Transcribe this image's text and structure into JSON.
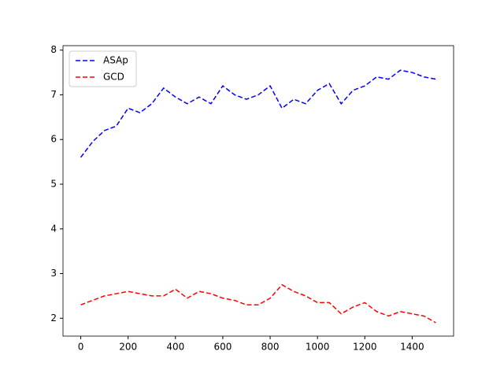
{
  "chart_data": {
    "type": "line",
    "x": [
      0,
      50,
      100,
      150,
      200,
      250,
      300,
      350,
      400,
      450,
      500,
      550,
      600,
      650,
      700,
      750,
      800,
      850,
      900,
      950,
      1000,
      1050,
      1100,
      1150,
      1200,
      1250,
      1300,
      1350,
      1400,
      1450,
      1500
    ],
    "series": [
      {
        "name": "ASAp",
        "color": "#0000ff",
        "values": [
          5.6,
          5.95,
          6.2,
          6.3,
          6.7,
          6.6,
          6.8,
          7.15,
          6.95,
          6.8,
          6.95,
          6.8,
          7.2,
          7.0,
          6.9,
          7.0,
          7.2,
          6.7,
          6.9,
          6.8,
          7.1,
          7.25,
          6.8,
          7.1,
          7.2,
          7.4,
          7.35,
          7.55,
          7.5,
          7.4,
          7.35
        ]
      },
      {
        "name": "GCD",
        "color": "#ff0000",
        "values": [
          2.3,
          2.4,
          2.5,
          2.55,
          2.6,
          2.55,
          2.5,
          2.5,
          2.65,
          2.45,
          2.6,
          2.55,
          2.45,
          2.4,
          2.3,
          2.3,
          2.45,
          2.75,
          2.6,
          2.5,
          2.35,
          2.35,
          2.1,
          2.25,
          2.35,
          2.15,
          2.05,
          2.15,
          2.1,
          2.05,
          1.9
        ]
      }
    ],
    "xlim": [
      -75,
      1575
    ],
    "xticks": [
      0,
      200,
      400,
      600,
      800,
      1000,
      1200,
      1400
    ],
    "ylim": [
      1.6,
      8.1
    ],
    "yticks": [
      2,
      3,
      4,
      5,
      6,
      7,
      8
    ],
    "legend": "upper left",
    "line_style": "dashed"
  }
}
